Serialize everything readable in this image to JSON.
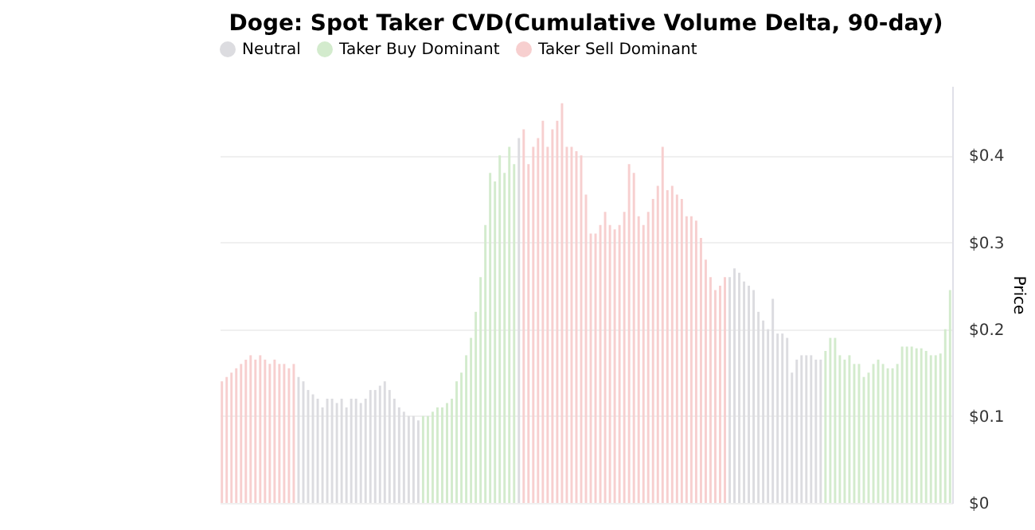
{
  "chart_data": {
    "type": "bar",
    "title": "Doge: Spot Taker CVD(Cumulative Volume Delta, 90-day)",
    "ylabel": "Price",
    "categories": [
      null,
      null,
      null,
      null,
      null,
      null,
      null,
      null,
      null,
      null,
      null,
      null,
      null,
      null,
      null,
      null,
      null,
      null,
      null,
      null,
      null,
      null,
      null,
      null,
      null,
      null,
      null,
      null,
      null,
      null,
      null,
      null,
      null,
      null,
      null,
      null,
      null,
      null,
      null,
      null,
      null,
      null,
      null,
      null,
      null,
      null,
      null,
      null,
      null,
      null,
      null,
      null,
      null,
      null,
      null,
      null,
      null,
      null,
      null,
      null,
      null,
      null,
      null,
      null,
      null,
      null,
      null,
      null,
      null,
      null,
      null,
      null,
      null,
      null,
      null,
      null,
      null,
      null,
      null,
      null,
      null,
      null,
      null,
      null,
      null,
      null,
      null,
      null,
      null,
      null,
      null,
      null,
      null,
      null,
      null,
      null,
      null,
      null,
      null,
      null,
      null,
      null,
      null,
      null,
      null,
      null,
      null,
      null,
      null,
      null,
      null,
      null,
      null,
      null,
      null,
      null,
      null,
      null,
      null,
      null,
      null,
      null,
      null,
      null,
      null,
      null,
      null,
      null,
      null,
      null,
      null,
      null,
      null,
      null,
      null,
      null,
      null,
      null,
      null,
      null,
      null,
      null,
      null,
      null,
      null,
      null,
      null,
      null,
      null,
      null,
      null,
      null,
      null
    ],
    "series": [
      {
        "name": "Neutral",
        "color": "#dcdce0",
        "values": [
          null,
          null,
          null,
          null,
          null,
          null,
          null,
          null,
          null,
          null,
          null,
          null,
          null,
          null,
          null,
          null,
          0.145,
          0.14,
          0.13,
          0.125,
          0.12,
          0.11,
          0.12,
          0.12,
          0.115,
          0.12,
          0.11,
          0.12,
          0.12,
          0.115,
          0.12,
          0.13,
          0.13,
          0.135,
          0.14,
          0.13,
          0.12,
          0.11,
          0.105,
          0.1,
          0.1,
          0.095,
          null,
          null,
          null,
          null,
          null,
          null,
          null,
          null,
          null,
          null,
          null,
          null,
          null,
          null,
          null,
          null,
          null,
          null,
          null,
          null,
          0.42,
          null,
          null,
          null,
          null,
          null,
          null,
          null,
          null,
          null,
          null,
          null,
          null,
          null,
          null,
          null,
          null,
          null,
          null,
          null,
          null,
          null,
          null,
          null,
          null,
          null,
          null,
          null,
          null,
          null,
          null,
          null,
          null,
          null,
          null,
          null,
          null,
          null,
          null,
          null,
          null,
          null,
          null,
          null,
          0.26,
          0.27,
          0.265,
          0.255,
          0.25,
          0.245,
          0.22,
          0.21,
          0.2,
          0.235,
          0.195,
          0.195,
          0.19,
          0.15,
          0.165,
          0.17,
          0.17,
          0.17,
          0.165,
          0.165,
          null,
          null,
          null,
          null,
          null,
          null,
          null,
          null,
          null,
          null,
          null,
          null,
          null,
          null,
          null,
          null,
          null,
          null,
          null,
          null,
          null,
          null,
          null,
          null,
          null,
          null,
          null
        ]
      },
      {
        "name": "Taker Buy Dominant",
        "color": "#d3ebcd",
        "values": [
          null,
          null,
          null,
          null,
          null,
          null,
          null,
          null,
          null,
          null,
          null,
          null,
          null,
          null,
          null,
          null,
          null,
          null,
          null,
          null,
          null,
          null,
          null,
          null,
          null,
          null,
          null,
          null,
          null,
          null,
          null,
          null,
          null,
          null,
          null,
          null,
          null,
          null,
          null,
          null,
          null,
          null,
          0.1,
          0.1,
          0.105,
          0.11,
          0.11,
          0.115,
          0.12,
          0.14,
          0.15,
          0.17,
          0.19,
          0.22,
          0.26,
          0.32,
          0.38,
          0.37,
          0.4,
          0.38,
          0.41,
          0.39,
          null,
          null,
          null,
          null,
          null,
          null,
          null,
          null,
          null,
          null,
          null,
          null,
          null,
          null,
          null,
          null,
          null,
          null,
          null,
          null,
          null,
          null,
          null,
          null,
          null,
          null,
          null,
          null,
          null,
          null,
          null,
          null,
          null,
          null,
          null,
          null,
          null,
          null,
          null,
          null,
          null,
          null,
          null,
          null,
          null,
          null,
          null,
          null,
          null,
          null,
          null,
          null,
          null,
          null,
          null,
          null,
          null,
          null,
          null,
          null,
          null,
          null,
          null,
          null,
          0.175,
          0.19,
          0.19,
          0.17,
          0.165,
          0.17,
          0.16,
          0.16,
          0.145,
          0.15,
          0.16,
          0.165,
          0.16,
          0.155,
          0.155,
          0.16,
          0.18,
          0.18,
          0.18,
          0.178,
          0.178,
          0.175,
          0.17,
          0.17,
          0.172,
          0.2,
          0.245
        ]
      },
      {
        "name": "Taker Sell Dominant",
        "color": "#f7cfcf",
        "values": [
          0.14,
          0.145,
          0.15,
          0.155,
          0.16,
          0.165,
          0.17,
          0.165,
          0.17,
          0.165,
          0.16,
          0.165,
          0.16,
          0.16,
          0.155,
          0.16,
          null,
          null,
          null,
          null,
          null,
          null,
          null,
          null,
          null,
          null,
          null,
          null,
          null,
          null,
          null,
          null,
          null,
          null,
          null,
          null,
          null,
          null,
          null,
          null,
          null,
          null,
          null,
          null,
          null,
          null,
          null,
          null,
          null,
          null,
          null,
          null,
          null,
          null,
          null,
          null,
          null,
          null,
          null,
          null,
          null,
          null,
          null,
          0.43,
          0.39,
          0.41,
          0.42,
          0.44,
          0.41,
          0.43,
          0.44,
          0.46,
          0.41,
          0.41,
          0.405,
          0.4,
          0.355,
          0.31,
          0.31,
          0.32,
          0.335,
          0.32,
          0.315,
          0.32,
          0.335,
          0.39,
          0.38,
          0.33,
          0.32,
          0.335,
          0.35,
          0.365,
          0.41,
          0.36,
          0.365,
          0.355,
          0.35,
          0.33,
          0.33,
          0.325,
          0.305,
          0.28,
          0.26,
          0.245,
          0.25,
          0.26,
          null,
          null,
          null,
          null,
          null,
          null,
          null,
          null,
          null,
          null,
          null,
          null,
          null,
          null,
          null,
          null,
          null,
          null,
          null,
          null,
          null,
          null,
          null,
          null,
          null,
          null,
          null,
          null,
          null,
          null,
          null,
          null,
          null,
          null,
          null,
          null,
          null,
          null,
          null,
          null,
          null,
          null,
          null,
          null,
          null,
          null,
          null
        ]
      }
    ],
    "ylim": [
      0,
      0.48
    ],
    "yticks": [
      {
        "value": 0,
        "label": "$0"
      },
      {
        "value": 0.1,
        "label": "$0.1"
      },
      {
        "value": 0.2,
        "label": "$0.2"
      },
      {
        "value": 0.3,
        "label": "$0.3"
      },
      {
        "value": 0.4,
        "label": "$0.4"
      }
    ],
    "grid": "y",
    "legend": "top",
    "tick_labels": "y"
  }
}
